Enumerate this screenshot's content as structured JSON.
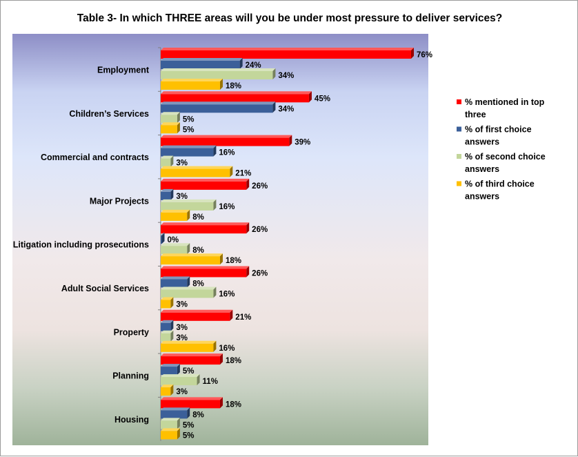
{
  "chart_data": {
    "type": "bar",
    "orientation": "horizontal",
    "title": "Table 3- In which THREE areas will you be under most pressure to deliver services?",
    "xlabel": "",
    "ylabel": "",
    "xlim": [
      0,
      100
    ],
    "grid": false,
    "legend_position": "right",
    "value_suffix": "%",
    "categories": [
      "Employment",
      "Children’s Services",
      "Commercial and contracts",
      "Major Projects",
      "Litigation including prosecutions",
      "Adult Social Services",
      "Property",
      "Planning",
      "Housing"
    ],
    "series": [
      {
        "name": "% mentioned in top three",
        "legend_lines": [
          "% mentioned in top",
          "three"
        ],
        "color": "#ff0000",
        "values": [
          76,
          45,
          39,
          26,
          26,
          26,
          21,
          18,
          18
        ]
      },
      {
        "name": "% of first choice answers",
        "legend_lines": [
          "% of first choice",
          "answers"
        ],
        "color": "#3b5f99",
        "values": [
          24,
          34,
          16,
          3,
          0,
          8,
          3,
          5,
          8
        ]
      },
      {
        "name": "% of second choice answers",
        "legend_lines": [
          "% of second choice",
          "answers"
        ],
        "color": "#c3d69b",
        "values": [
          34,
          5,
          3,
          16,
          8,
          16,
          3,
          11,
          5
        ]
      },
      {
        "name": "% of third choice answers",
        "legend_lines": [
          "% of third choice",
          "answers"
        ],
        "color": "#ffc000",
        "values": [
          18,
          5,
          21,
          8,
          18,
          3,
          16,
          3,
          5
        ]
      }
    ]
  }
}
